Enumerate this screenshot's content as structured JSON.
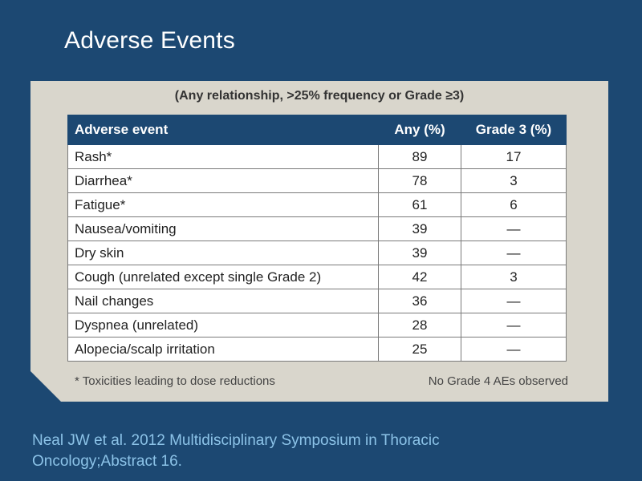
{
  "slide": {
    "title": "Adverse Events",
    "subtitle": "(Any relationship, >25% frequency or Grade ≥3)",
    "table": {
      "headers": [
        "Adverse event",
        "Any (%)",
        "Grade 3 (%)"
      ],
      "rows": [
        {
          "event": "Rash*",
          "any": "89",
          "grade3": "17"
        },
        {
          "event": "Diarrhea*",
          "any": "78",
          "grade3": "3"
        },
        {
          "event": "Fatigue*",
          "any": "61",
          "grade3": "6"
        },
        {
          "event": "Nausea/vomiting",
          "any": "39",
          "grade3": "—"
        },
        {
          "event": "Dry skin",
          "any": "39",
          "grade3": "—"
        },
        {
          "event": "Cough (unrelated except single Grade 2)",
          "any": "42",
          "grade3": "3"
        },
        {
          "event": "Nail changes",
          "any": "36",
          "grade3": "—"
        },
        {
          "event": "Dyspnea (unrelated)",
          "any": "28",
          "grade3": "—"
        },
        {
          "event": "Alopecia/scalp irritation",
          "any": "25",
          "grade3": "—"
        }
      ]
    },
    "footnote": "* Toxicities leading to dose reductions",
    "note": "No Grade 4 AEs observed",
    "citation": "Neal JW et al. 2012 Multidisciplinary Symposium in Thoracic Oncology;Abstract 16."
  },
  "colors": {
    "background": "#1c4872",
    "panel": "#d9d6cc",
    "header_fill": "#1c4872",
    "citation_text": "#8cc3e8"
  }
}
